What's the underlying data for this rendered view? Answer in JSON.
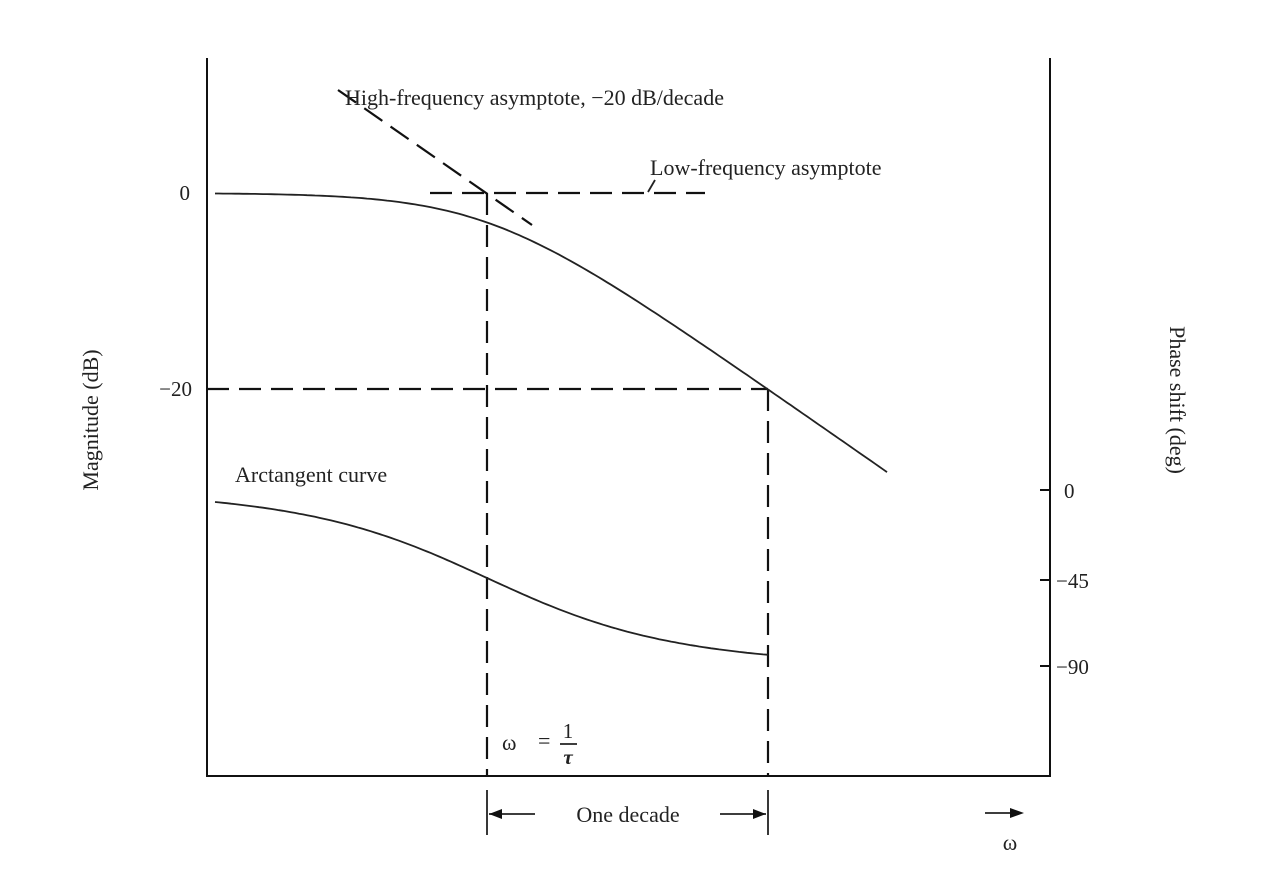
{
  "chart_data": {
    "type": "line",
    "title": "",
    "left_axis_label": "Magnitude (dB)",
    "right_axis_label": "Phase shift (deg)",
    "x_axis_symbol": "ω",
    "left_ticks": [
      "0",
      "−20"
    ],
    "right_ticks": [
      "0",
      "−45",
      "−90"
    ],
    "log_x": true,
    "grid": false,
    "annotations": {
      "high_freq": "High-frequency asymptote, −20 dB/decade",
      "low_freq": "Low-frequency asymptote",
      "arctan": "Arctangent curve",
      "corner_lhs": "ω",
      "corner_eq": "=",
      "corner_num": "1",
      "corner_den": "τ",
      "decade": "One decade"
    },
    "series": [
      {
        "name": "Magnitude (dB)",
        "x_wtau": [
          0.1,
          0.3,
          1,
          3,
          10,
          15
        ],
        "values": [
          -0.04,
          -0.4,
          -3,
          -10,
          -20,
          -23.5
        ]
      },
      {
        "name": "Arctangent curve",
        "x_wtau": [
          0.1,
          0.3,
          1,
          3,
          10
        ],
        "values": [
          -5.7,
          -16.7,
          -45,
          -71.6,
          -84.3
        ]
      }
    ],
    "colors": {
      "ink": "#222222",
      "background": "#ffffff"
    }
  }
}
